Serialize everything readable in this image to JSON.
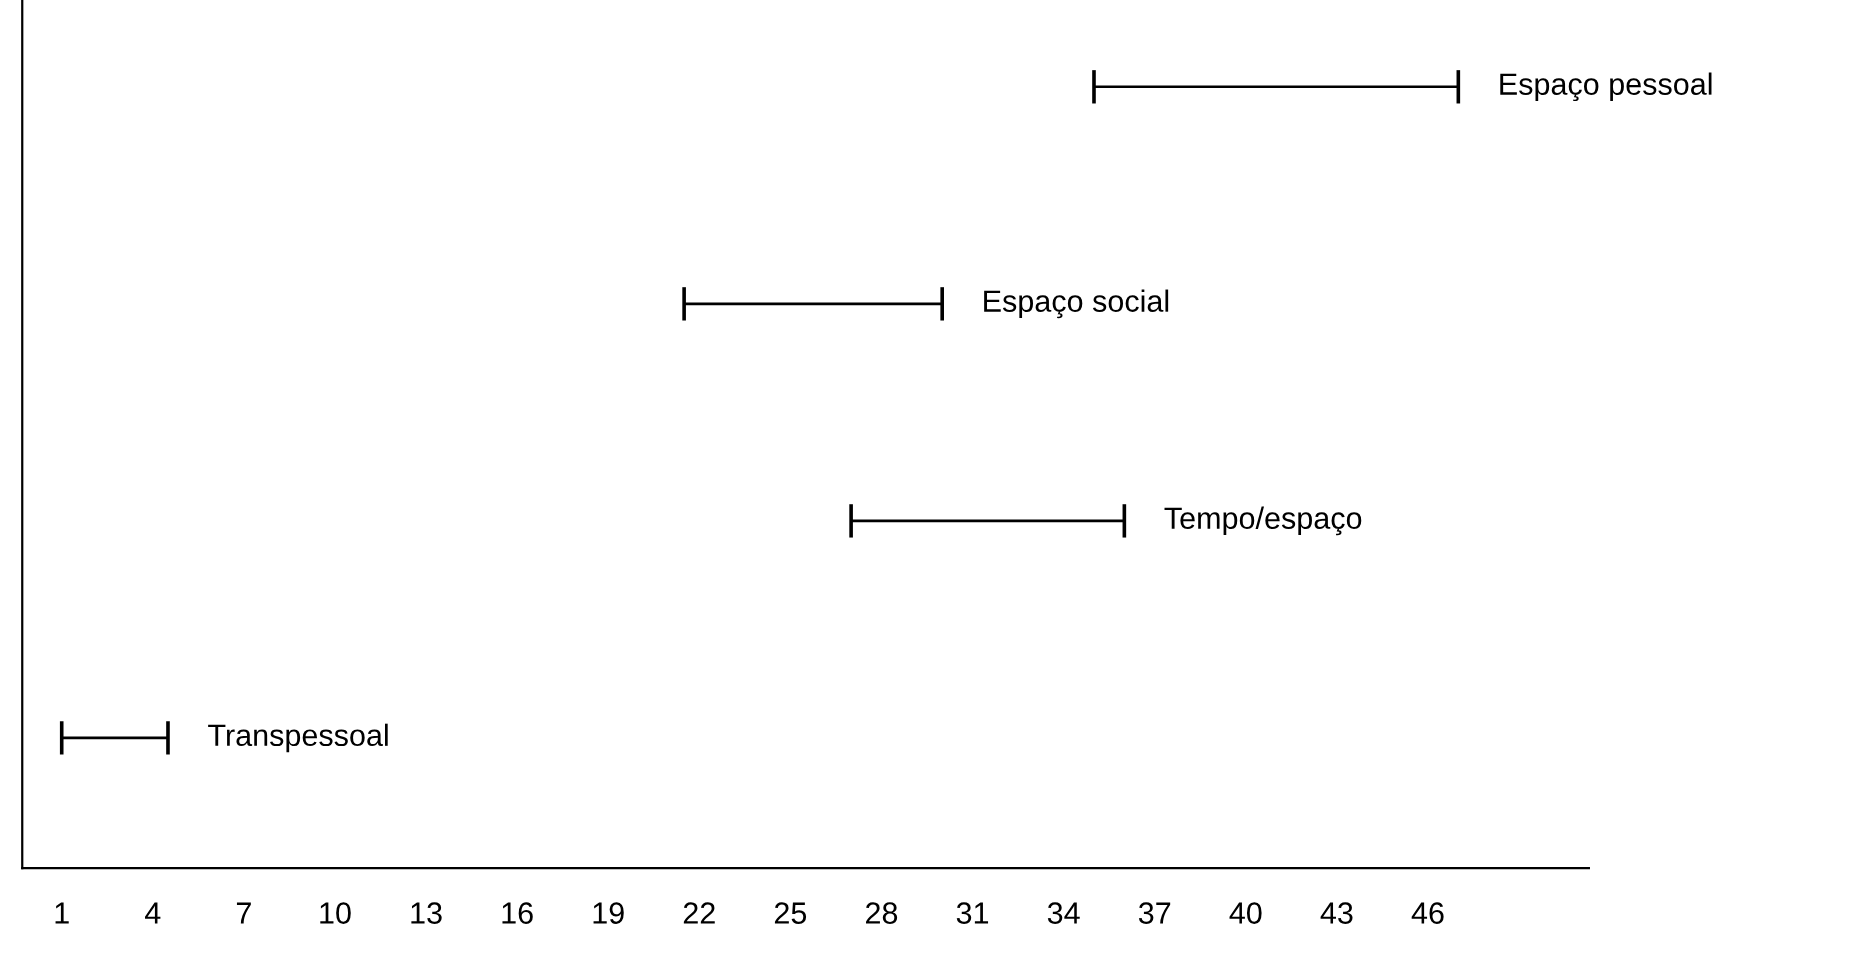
{
  "chart_data": {
    "type": "bar",
    "orientation": "horizontal",
    "categories": [
      "Espaço pessoal",
      "Espaço social",
      "Tempo/espaço",
      "Transpessoal"
    ],
    "base": [
      35,
      21.5,
      27,
      1
    ],
    "values": [
      12,
      8.5,
      9,
      3.5
    ],
    "color": "#000000",
    "xlim": [
      -0.3,
      51.3
    ],
    "xticks": [
      1,
      4,
      7,
      10,
      13,
      16,
      19,
      22,
      25,
      28,
      31,
      34,
      37,
      40,
      43,
      46
    ],
    "tick_labels": "x",
    "grid": false,
    "legend": false
  }
}
